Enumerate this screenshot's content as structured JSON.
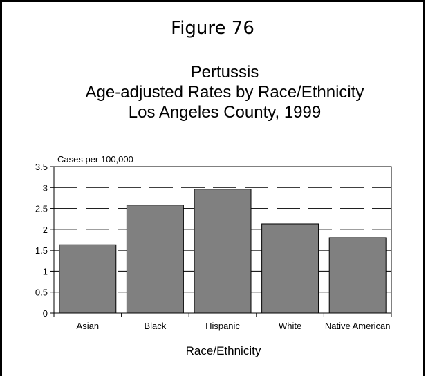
{
  "figure_label": "Figure 76",
  "chart_data": {
    "type": "bar",
    "title_lines": [
      "Pertussis",
      "Age-adjusted Rates by Race/Ethnicity",
      "Los Angeles County, 1999"
    ],
    "ylabel": "Cases per 100,000",
    "xlabel": "Race/Ethnicity",
    "categories": [
      "Asian",
      "Black",
      "Hispanic",
      "White",
      "Native American"
    ],
    "values": [
      1.63,
      2.58,
      2.96,
      2.13,
      1.8
    ],
    "ylim": [
      0,
      3.5
    ],
    "yticks": [
      "0",
      "0.5",
      "1",
      "1.5",
      "2",
      "2.5",
      "3",
      "3.5"
    ],
    "grid": "dashed horizontal",
    "bar_color": "#808080"
  }
}
